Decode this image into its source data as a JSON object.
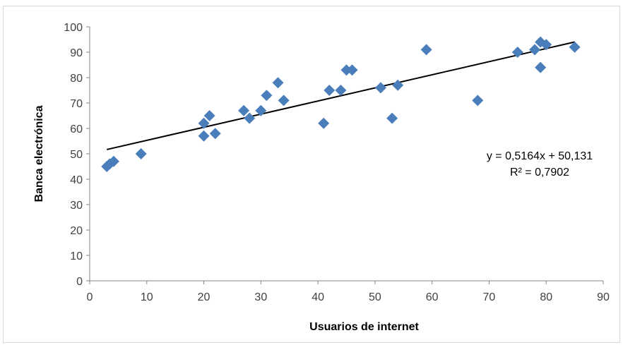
{
  "chart_data": {
    "type": "scatter",
    "xlabel": "Usuarios de internet",
    "ylabel": "Banca electrónica",
    "xlim": [
      0,
      90
    ],
    "ylim": [
      0,
      100
    ],
    "xticks": [
      "0",
      "10",
      "20",
      "30",
      "40",
      "50",
      "60",
      "70",
      "80",
      "90"
    ],
    "yticks": [
      "0",
      "10",
      "20",
      "30",
      "40",
      "50",
      "60",
      "70",
      "80",
      "90",
      "100"
    ],
    "grid": false,
    "marker": "diamond",
    "marker_color": "#4a7ebb",
    "points": [
      {
        "x": 3,
        "y": 45
      },
      {
        "x": 3.5,
        "y": 46
      },
      {
        "x": 4.2,
        "y": 47
      },
      {
        "x": 9,
        "y": 50
      },
      {
        "x": 20,
        "y": 57
      },
      {
        "x": 20,
        "y": 62
      },
      {
        "x": 21,
        "y": 65
      },
      {
        "x": 22,
        "y": 58
      },
      {
        "x": 27,
        "y": 67
      },
      {
        "x": 28,
        "y": 64
      },
      {
        "x": 30,
        "y": 67
      },
      {
        "x": 31,
        "y": 73
      },
      {
        "x": 33,
        "y": 78
      },
      {
        "x": 34,
        "y": 71
      },
      {
        "x": 41,
        "y": 62
      },
      {
        "x": 42,
        "y": 75
      },
      {
        "x": 44,
        "y": 75
      },
      {
        "x": 45,
        "y": 83
      },
      {
        "x": 46,
        "y": 83
      },
      {
        "x": 51,
        "y": 76
      },
      {
        "x": 53,
        "y": 64
      },
      {
        "x": 54,
        "y": 77
      },
      {
        "x": 59,
        "y": 91
      },
      {
        "x": 68,
        "y": 71
      },
      {
        "x": 75,
        "y": 90
      },
      {
        "x": 78,
        "y": 91
      },
      {
        "x": 79,
        "y": 94
      },
      {
        "x": 79,
        "y": 84
      },
      {
        "x": 80,
        "y": 93
      },
      {
        "x": 85,
        "y": 92
      }
    ],
    "trendline": {
      "slope": 0.5164,
      "intercept": 50.131,
      "x_range": [
        3,
        85
      ],
      "color": "#000000",
      "equation_label": "y = 0,5164x + 50,131",
      "r2_label": "R² = 0,7902"
    }
  }
}
